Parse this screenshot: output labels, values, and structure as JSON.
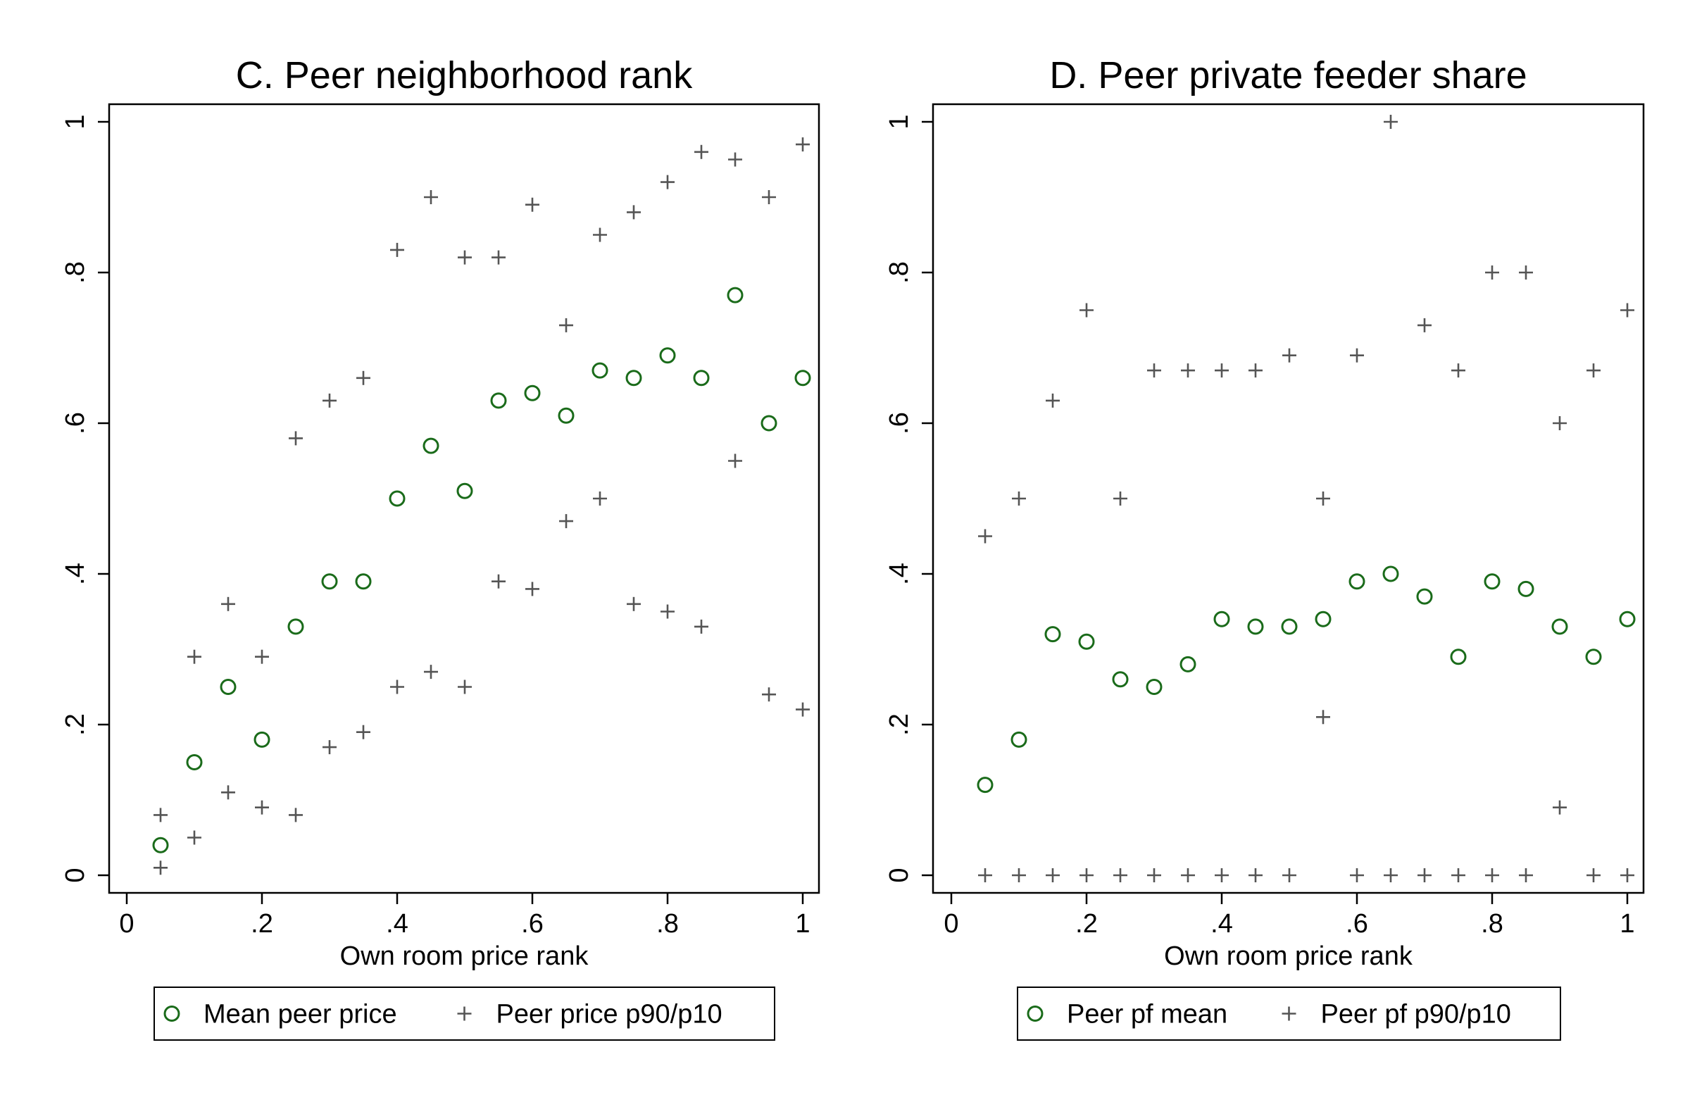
{
  "colors": {
    "mean_marker": "#1a6b1a",
    "spread_marker": "#555555",
    "axis": "#000000"
  },
  "chart_data": [
    {
      "type": "scatter",
      "title": "C. Peer neighborhood rank",
      "xlabel": "Own room price rank",
      "ylabel": "",
      "xlim": [
        -0.025,
        1.025
      ],
      "ylim": [
        -0.025,
        1.025
      ],
      "xticks": [
        "0",
        ".2",
        ".4",
        ".6",
        ".8",
        "1"
      ],
      "yticks": [
        "0",
        ".2",
        ".4",
        ".6",
        ".8",
        "1"
      ],
      "x": [
        0.05,
        0.1,
        0.15,
        0.2,
        0.25,
        0.3,
        0.35,
        0.4,
        0.45,
        0.5,
        0.55,
        0.6,
        0.65,
        0.7,
        0.75,
        0.8,
        0.85,
        0.9,
        0.95,
        1.0
      ],
      "legend_position": "bottom",
      "series": [
        {
          "name": "Mean peer price",
          "marker": "circle",
          "values": [
            0.04,
            0.15,
            0.25,
            0.18,
            0.33,
            0.39,
            0.39,
            0.5,
            0.57,
            0.51,
            0.63,
            0.64,
            0.61,
            0.67,
            0.66,
            0.69,
            0.66,
            0.77,
            0.6,
            0.66
          ]
        },
        {
          "name": "Peer price p90/p10",
          "marker": "plus",
          "values_high": [
            0.08,
            0.29,
            0.36,
            0.29,
            0.58,
            0.63,
            0.66,
            0.83,
            0.9,
            0.82,
            0.82,
            0.89,
            0.73,
            0.85,
            0.88,
            0.92,
            0.96,
            0.95,
            0.9,
            0.97
          ],
          "values_low": [
            0.01,
            0.05,
            0.11,
            0.09,
            0.08,
            0.17,
            0.19,
            0.25,
            0.27,
            0.25,
            0.39,
            0.38,
            0.47,
            0.5,
            0.36,
            0.35,
            0.33,
            0.55,
            0.24,
            0.22
          ]
        }
      ]
    },
    {
      "type": "scatter",
      "title": "D. Peer private feeder share",
      "xlabel": "Own room price rank",
      "ylabel": "",
      "xlim": [
        -0.025,
        1.025
      ],
      "ylim": [
        -0.025,
        1.025
      ],
      "xticks": [
        "0",
        ".2",
        ".4",
        ".6",
        ".8",
        "1"
      ],
      "yticks": [
        "0",
        ".2",
        ".4",
        ".6",
        ".8",
        "1"
      ],
      "x": [
        0.05,
        0.1,
        0.15,
        0.2,
        0.25,
        0.3,
        0.35,
        0.4,
        0.45,
        0.5,
        0.55,
        0.6,
        0.65,
        0.7,
        0.75,
        0.8,
        0.85,
        0.9,
        0.95,
        1.0
      ],
      "legend_position": "bottom",
      "series": [
        {
          "name": "Peer pf mean",
          "marker": "circle",
          "values": [
            0.12,
            0.18,
            0.32,
            0.31,
            0.26,
            0.25,
            0.28,
            0.34,
            0.33,
            0.33,
            0.34,
            0.39,
            0.4,
            0.37,
            0.29,
            0.39,
            0.38,
            0.33,
            0.29,
            0.34
          ]
        },
        {
          "name": "Peer pf p90/p10",
          "marker": "plus",
          "values_high": [
            0.45,
            0.5,
            0.63,
            0.75,
            0.5,
            0.67,
            0.67,
            0.67,
            0.67,
            0.69,
            0.5,
            0.69,
            1.0,
            0.73,
            0.67,
            0.8,
            0.8,
            0.6,
            0.67,
            0.75
          ],
          "values_low": [
            0.0,
            0.0,
            0.0,
            0.0,
            0.0,
            0.0,
            0.0,
            0.0,
            0.0,
            0.0,
            0.21,
            0.0,
            0.0,
            0.0,
            0.0,
            0.0,
            0.0,
            0.09,
            0.0,
            0.0
          ]
        }
      ]
    }
  ]
}
